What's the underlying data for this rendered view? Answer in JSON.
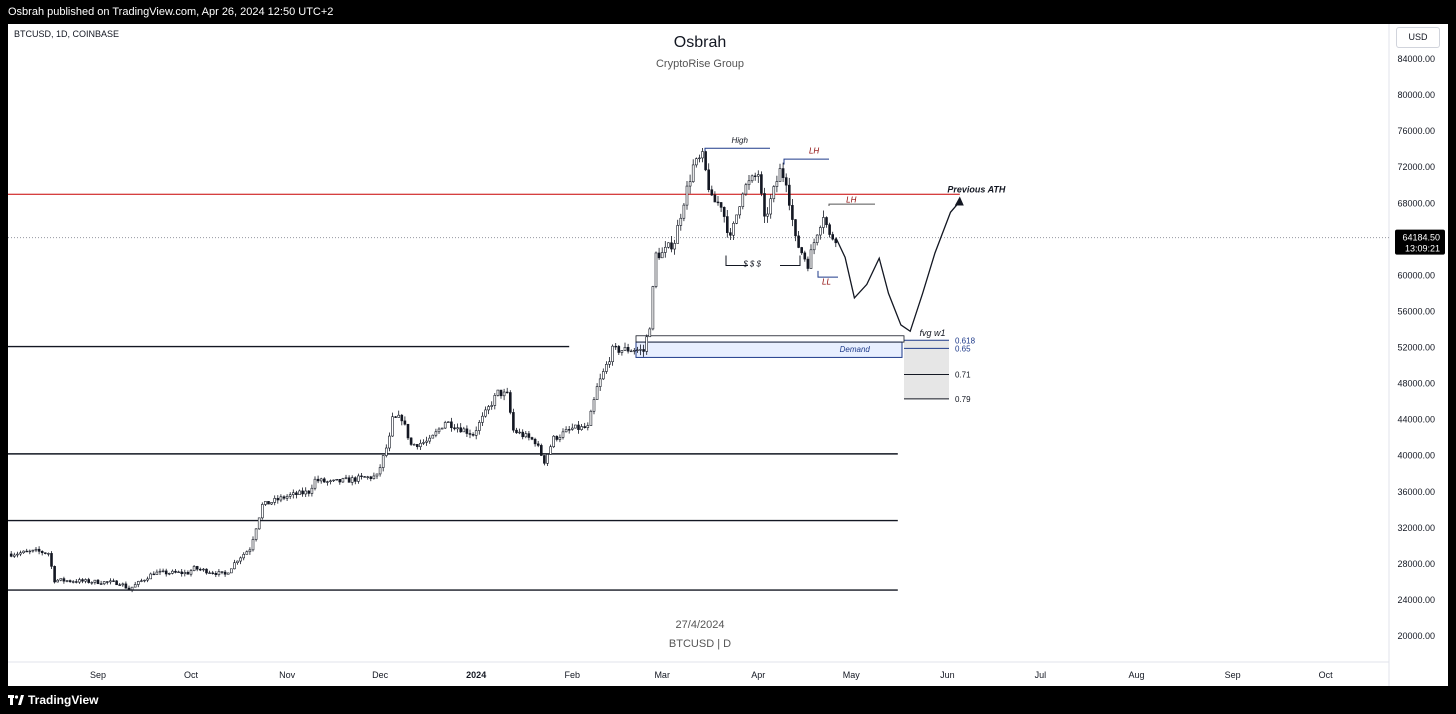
{
  "header": {
    "published": "Osbrah published on TradingView.com, Apr 26, 2024 12:50 UTC+2"
  },
  "chart_header": {
    "symbol": "BTCUSD, 1D, COINBASE",
    "currency_button": "USD",
    "title": "Osbrah",
    "subtitle": "CryptoRise Group"
  },
  "watermark": {
    "date": "27/4/2024",
    "symbol": "BTCUSD | D"
  },
  "footer": {
    "brand": "TradingView"
  },
  "price_label": {
    "value": "64184.50",
    "countdown": "13:09:21"
  },
  "colors": {
    "ath_line": "#c80000",
    "demand": "#1e3a8a",
    "lh_label": "#8b0000",
    "candle": "#131722"
  },
  "chart_data": {
    "type": "candlestick",
    "ylim": [
      20000,
      84000
    ],
    "y_ticks": [
      "84000.00",
      "80000.00",
      "76000.00",
      "72000.00",
      "68000.00",
      "64000.00",
      "60000.00",
      "56000.00",
      "52000.00",
      "48000.00",
      "44000.00",
      "40000.00",
      "36000.00",
      "32000.00",
      "28000.00",
      "24000.00",
      "20000.00"
    ],
    "x_ticks": [
      {
        "label": "Sep",
        "date": "2023-09-01"
      },
      {
        "label": "Oct",
        "date": "2023-10-01"
      },
      {
        "label": "Nov",
        "date": "2023-11-01"
      },
      {
        "label": "Dec",
        "date": "2023-12-01"
      },
      {
        "label": "2024",
        "date": "2024-01-01",
        "bold": true
      },
      {
        "label": "Feb",
        "date": "2024-02-01"
      },
      {
        "label": "Mar",
        "date": "2024-03-01"
      },
      {
        "label": "Apr",
        "date": "2024-04-01"
      },
      {
        "label": "May",
        "date": "2024-05-01"
      },
      {
        "label": "Jun",
        "date": "2024-06-01"
      },
      {
        "label": "Jul",
        "date": "2024-07-01"
      },
      {
        "label": "Aug",
        "date": "2024-08-01"
      },
      {
        "label": "Sep",
        "date": "2024-09-01"
      },
      {
        "label": "Oct",
        "date": "2024-10-01"
      }
    ],
    "price_path": [
      [
        "2023-08-04",
        29100
      ],
      [
        "2023-08-12",
        29400
      ],
      [
        "2023-08-16",
        29200
      ],
      [
        "2023-08-18",
        26200
      ],
      [
        "2023-08-25",
        26100
      ],
      [
        "2023-09-08",
        25900
      ],
      [
        "2023-09-11",
        25200
      ],
      [
        "2023-09-19",
        27000
      ],
      [
        "2023-09-30",
        27000
      ],
      [
        "2023-10-02",
        27500
      ],
      [
        "2023-10-12",
        26800
      ],
      [
        "2023-10-16",
        28500
      ],
      [
        "2023-10-20",
        29700
      ],
      [
        "2023-10-24",
        34500
      ],
      [
        "2023-11-01",
        35500
      ],
      [
        "2023-11-08",
        36000
      ],
      [
        "2023-11-10",
        37300
      ],
      [
        "2023-11-15",
        37000
      ],
      [
        "2023-11-25",
        37500
      ],
      [
        "2023-11-30",
        37700
      ],
      [
        "2023-12-04",
        41900
      ],
      [
        "2023-12-05",
        44000
      ],
      [
        "2023-12-08",
        44200
      ],
      [
        "2023-12-11",
        41200
      ],
      [
        "2023-12-17",
        41600
      ],
      [
        "2023-12-22",
        43800
      ],
      [
        "2023-12-31",
        42400
      ],
      [
        "2024-01-08",
        47000
      ],
      [
        "2024-01-11",
        46700
      ],
      [
        "2024-01-13",
        42800
      ],
      [
        "2024-01-20",
        41600
      ],
      [
        "2024-01-23",
        39400
      ],
      [
        "2024-01-26",
        41900
      ],
      [
        "2024-02-01",
        43000
      ],
      [
        "2024-02-06",
        43100
      ],
      [
        "2024-02-09",
        47500
      ],
      [
        "2024-02-14",
        51700
      ],
      [
        "2024-02-21",
        51800
      ],
      [
        "2024-02-24",
        51600
      ],
      [
        "2024-02-26",
        54500
      ],
      [
        "2024-02-28",
        62300
      ],
      [
        "2024-03-01",
        62400
      ],
      [
        "2024-03-05",
        63800
      ],
      [
        "2024-03-08",
        68300
      ],
      [
        "2024-03-11",
        72100
      ],
      [
        "2024-03-14",
        73100
      ],
      [
        "2024-03-17",
        68300
      ],
      [
        "2024-03-20",
        67900
      ],
      [
        "2024-03-23",
        64000
      ],
      [
        "2024-03-27",
        69500
      ],
      [
        "2024-04-01",
        71300
      ],
      [
        "2024-04-03",
        66000
      ],
      [
        "2024-04-08",
        71600
      ],
      [
        "2024-04-10",
        70600
      ],
      [
        "2024-04-13",
        63900
      ],
      [
        "2024-04-17",
        61300
      ],
      [
        "2024-04-20",
        64900
      ],
      [
        "2024-04-22",
        66800
      ],
      [
        "2024-04-24",
        64300
      ],
      [
        "2024-04-26",
        64184.5
      ]
    ],
    "levels": [
      {
        "price": 69000,
        "color": "#c80000",
        "label": "Previous ATH",
        "from": "2023-08-01",
        "to": "2024-06-05"
      },
      {
        "price": 52100,
        "from": "2023-08-01",
        "to": "2024-01-31"
      },
      {
        "price": 40200,
        "from": "2023-08-01",
        "to": "2024-05-16"
      },
      {
        "price": 32800,
        "from": "2023-08-01",
        "to": "2024-05-16"
      },
      {
        "price": 25100,
        "from": "2023-08-01",
        "to": "2024-05-16"
      }
    ],
    "annotations": [
      {
        "text": "High",
        "date": "2024-03-26",
        "price": 74700
      },
      {
        "text": "LH",
        "date": "2024-04-19",
        "price": 73500
      },
      {
        "text": "LH",
        "date": "2024-05-01",
        "price": 68100
      },
      {
        "text": "$ $ $",
        "date": "2024-03-30",
        "price": 61000
      },
      {
        "text": "LL",
        "date": "2024-04-23",
        "price": 59000
      },
      {
        "text": "Previous ATH",
        "date": "2024-06-01",
        "price": 69200
      },
      {
        "text": "fvg w1",
        "date": "2024-05-23",
        "price": 53300
      },
      {
        "text": "Demand",
        "date": "2024-05-07",
        "price": 51500
      }
    ],
    "fib_levels": [
      {
        "label": "0.618",
        "price": 52800
      },
      {
        "label": "0.65",
        "price": 51900
      },
      {
        "label": "0.71",
        "price": 49000
      },
      {
        "label": "0.79",
        "price": 46300
      }
    ],
    "projection": [
      [
        "2024-04-26",
        64184.5
      ],
      [
        "2024-04-29",
        62000
      ],
      [
        "2024-05-02",
        57500
      ],
      [
        "2024-05-06",
        59000
      ],
      [
        "2024-05-10",
        61900
      ],
      [
        "2024-05-13",
        58000
      ],
      [
        "2024-05-17",
        54500
      ],
      [
        "2024-05-20",
        53800
      ],
      [
        "2024-05-24",
        58000
      ],
      [
        "2024-05-28",
        62500
      ],
      [
        "2024-06-02",
        67000
      ],
      [
        "2024-06-05",
        68200
      ]
    ]
  }
}
